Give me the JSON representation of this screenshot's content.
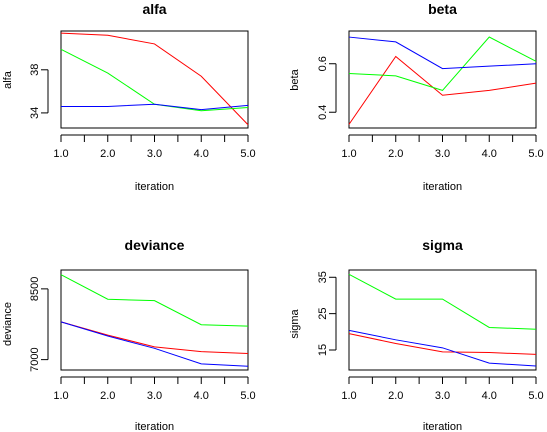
{
  "chart_data": [
    {
      "type": "line",
      "title": "alfa",
      "xlabel": "iteration",
      "ylabel": "alfa",
      "x": [
        1,
        2,
        3,
        4,
        5
      ],
      "xticks": [
        "1.0",
        "2.0",
        "3.0",
        "4.0",
        "5.0"
      ],
      "xlim": [
        1,
        5
      ],
      "ylim": [
        32.6,
        41.6
      ],
      "yticks": [
        34,
        38
      ],
      "ytick_labels": [
        "34",
        "38"
      ],
      "grid": false,
      "series": [
        {
          "color": "#ff0000",
          "values": [
            41.4,
            41.2,
            40.4,
            37.4,
            32.9
          ]
        },
        {
          "color": "#00ff00",
          "values": [
            39.9,
            37.7,
            34.8,
            34.2,
            34.5
          ]
        },
        {
          "color": "#0000ff",
          "values": [
            34.6,
            34.6,
            34.8,
            34.3,
            34.7
          ]
        }
      ]
    },
    {
      "type": "line",
      "title": "beta",
      "xlabel": "iteration",
      "ylabel": "beta",
      "x": [
        1,
        2,
        3,
        4,
        5
      ],
      "xticks": [
        "1.0",
        "2.0",
        "3.0",
        "4.0",
        "5.0"
      ],
      "xlim": [
        1,
        5
      ],
      "ylim": [
        0.335,
        0.735
      ],
      "yticks": [
        0.4,
        0.6
      ],
      "ytick_labels": [
        "0.4",
        "0.6"
      ],
      "grid": false,
      "series": [
        {
          "color": "#ff0000",
          "values": [
            0.35,
            0.63,
            0.47,
            0.49,
            0.52
          ]
        },
        {
          "color": "#00ff00",
          "values": [
            0.56,
            0.55,
            0.49,
            0.71,
            0.61
          ]
        },
        {
          "color": "#0000ff",
          "values": [
            0.71,
            0.69,
            0.58,
            0.59,
            0.6
          ]
        }
      ]
    },
    {
      "type": "line",
      "title": "deviance",
      "xlabel": "iteration",
      "ylabel": "deviance",
      "x": [
        1,
        2,
        3,
        4,
        5
      ],
      "xticks": [
        "1.0",
        "2.0",
        "3.0",
        "4.0",
        "5.0"
      ],
      "xlim": [
        1,
        5
      ],
      "ylim": [
        6780,
        8900
      ],
      "yticks": [
        7000,
        8500
      ],
      "ytick_labels": [
        "7000",
        "8500"
      ],
      "grid": false,
      "series": [
        {
          "color": "#ff0000",
          "values": [
            7800,
            7520,
            7270,
            7170,
            7130
          ]
        },
        {
          "color": "#00ff00",
          "values": [
            8800,
            8280,
            8250,
            7740,
            7710
          ]
        },
        {
          "color": "#0000ff",
          "values": [
            7800,
            7500,
            7240,
            6910,
            6860
          ]
        }
      ]
    },
    {
      "type": "line",
      "title": "sigma",
      "xlabel": "iteration",
      "ylabel": "sigma",
      "x": [
        1,
        2,
        3,
        4,
        5
      ],
      "xticks": [
        "1.0",
        "2.0",
        "3.0",
        "4.0",
        "5.0"
      ],
      "xlim": [
        1,
        5
      ],
      "ylim": [
        9.5,
        37.0
      ],
      "yticks": [
        15,
        25,
        35
      ],
      "ytick_labels": [
        "15",
        "25",
        "35"
      ],
      "grid": false,
      "series": [
        {
          "color": "#ff0000",
          "values": [
            19.5,
            16.8,
            14.5,
            14.3,
            13.8
          ]
        },
        {
          "color": "#00ff00",
          "values": [
            35.8,
            29.0,
            29.0,
            21.2,
            20.7
          ]
        },
        {
          "color": "#0000ff",
          "values": [
            20.4,
            17.8,
            15.6,
            11.4,
            10.6
          ]
        }
      ]
    }
  ]
}
